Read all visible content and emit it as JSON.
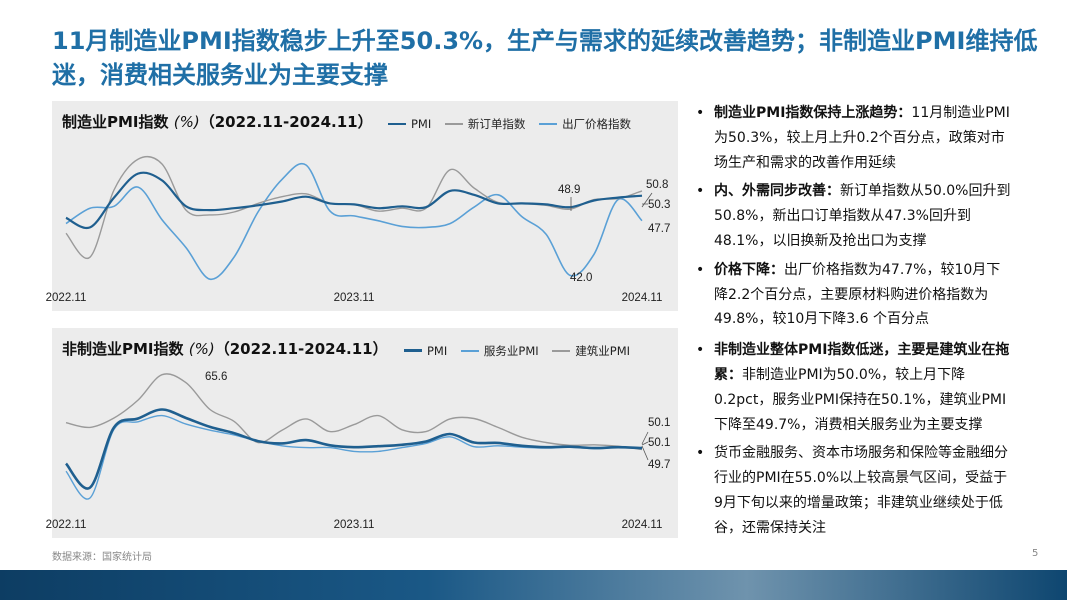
{
  "title": "11月制造业PMI指数稳步上升至50.3%，生产与需求的延续改善趋势；非制造业PMI维持低迷，消费相关服务业为主要支撑",
  "source": "数据来源：国家统计局",
  "page_number": "5",
  "bullets": [
    {
      "bold": "制造业PMI指数保持上涨趋势：",
      "text": "11月制造业PMI为50.3%，较上月上升0.2个百分点，政策对市场生产和需求的改善作用延续"
    },
    {
      "bold": "内、外需同步改善：",
      "text": "新订单指数从50.0%回升到50.8%，新出口订单指数从47.3%回升到48.1%，以旧换新及抢出口为支撑"
    },
    {
      "bold": "价格下降：",
      "text": "出厂价格指数为47.7%，较10月下降2.2个百分点，主要原材料购进价格指数为49.8%，较10月下降3.6 个百分点"
    },
    {
      "bold": "非制造业整体PMI指数低迷，主要是建筑业在拖累：",
      "text": "非制造业PMI为50.0%，较上月下降0.2pct，服务业PMI保持在50.1%，建筑业PMI下降至49.7%，消费相关服务业为主要支撑"
    },
    {
      "bold": "",
      "text": "货币金融服务、资本市场服务和保险等金融细分行业的PMI在55.0%以上较高景气区间，受益于9月下旬以来的增量政策；非建筑业继续处于低谷，还需保持关注"
    }
  ],
  "chart_data": [
    {
      "type": "line",
      "title_main": "制造业PMI指数",
      "title_unit": "(%)",
      "title_range": "（2022.11-2024.11）",
      "x": [
        "2022.11",
        "2022.12",
        "2023.01",
        "2023.02",
        "2023.03",
        "2023.04",
        "2023.05",
        "2023.06",
        "2023.07",
        "2023.08",
        "2023.09",
        "2023.10",
        "2023.11",
        "2023.12",
        "2024.01",
        "2024.02",
        "2024.03",
        "2024.04",
        "2024.05",
        "2024.06",
        "2024.07",
        "2024.08",
        "2024.09",
        "2024.10",
        "2024.11"
      ],
      "xticks": [
        "2022.11",
        "2023.11",
        "2024.11"
      ],
      "ylim": [
        41,
        56
      ],
      "colors": [
        "#1f5f8f",
        "#9a9a9a",
        "#5aa0d6"
      ],
      "series": [
        {
          "name": "PMI",
          "values": [
            48.0,
            47.0,
            50.1,
            52.6,
            51.9,
            49.2,
            48.8,
            49.0,
            49.3,
            49.7,
            50.2,
            49.5,
            49.4,
            49.0,
            49.2,
            49.1,
            50.8,
            50.4,
            49.5,
            49.5,
            49.4,
            49.1,
            49.8,
            50.1,
            50.3
          ]
        },
        {
          "name": "新订单指数",
          "values": [
            46.4,
            43.9,
            50.9,
            54.1,
            53.6,
            48.8,
            48.3,
            48.6,
            49.5,
            50.2,
            50.5,
            49.5,
            49.4,
            48.7,
            49.0,
            49.0,
            53.0,
            51.1,
            49.6,
            49.5,
            49.3,
            48.9,
            49.9,
            50.0,
            50.8
          ]
        },
        {
          "name": "出厂价格指数",
          "values": [
            47.4,
            49.0,
            49.2,
            51.2,
            47.8,
            44.9,
            41.6,
            43.9,
            48.6,
            52.0,
            53.5,
            48.7,
            48.2,
            47.7,
            47.1,
            47.0,
            47.4,
            49.1,
            50.4,
            48.1,
            46.3,
            42.0,
            44.2,
            49.9,
            47.7
          ]
        }
      ],
      "annotations": [
        "50.8",
        "50.3",
        "47.7",
        "48.9",
        "42.0"
      ]
    },
    {
      "type": "line",
      "title_main": "非制造业PMI指数",
      "title_unit": "(%)",
      "title_range": "（2022.11-2024.11）",
      "x": [
        "2022.11",
        "2022.12",
        "2023.01",
        "2023.02",
        "2023.03",
        "2023.04",
        "2023.05",
        "2023.06",
        "2023.07",
        "2023.08",
        "2023.09",
        "2023.10",
        "2023.11",
        "2023.12",
        "2024.01",
        "2024.02",
        "2024.03",
        "2024.04",
        "2024.05",
        "2024.06",
        "2024.07",
        "2024.08",
        "2024.09",
        "2024.10",
        "2024.11"
      ],
      "xticks": [
        "2022.11",
        "2023.11",
        "2024.11"
      ],
      "ylim": [
        36,
        70
      ],
      "colors": [
        "#1f5f8f",
        "#5aa0d6",
        "#9a9a9a"
      ],
      "series": [
        {
          "name": "PMI",
          "values": [
            46.7,
            41.6,
            54.4,
            56.3,
            58.2,
            56.4,
            54.5,
            53.2,
            51.5,
            51.0,
            51.7,
            50.6,
            50.2,
            50.4,
            50.7,
            51.4,
            53.0,
            51.2,
            51.1,
            50.5,
            50.2,
            50.3,
            50.0,
            50.2,
            50.0
          ]
        },
        {
          "name": "服务业PMI",
          "values": [
            45.1,
            39.4,
            54.0,
            55.6,
            56.9,
            55.1,
            53.8,
            52.8,
            51.5,
            50.5,
            50.1,
            50.1,
            49.3,
            49.3,
            50.1,
            51.0,
            52.4,
            50.3,
            50.5,
            50.2,
            50.0,
            50.2,
            49.9,
            50.1,
            50.1
          ]
        },
        {
          "name": "建筑业PMI",
          "values": [
            55.4,
            54.4,
            56.4,
            60.2,
            65.6,
            63.9,
            58.2,
            55.7,
            51.2,
            53.8,
            56.2,
            53.5,
            55.0,
            56.9,
            53.9,
            53.5,
            56.2,
            56.3,
            54.4,
            52.3,
            51.2,
            50.6,
            50.7,
            50.4,
            49.7
          ]
        }
      ],
      "annotations": [
        "65.6",
        "50.1",
        "50.1",
        "49.7"
      ]
    }
  ]
}
